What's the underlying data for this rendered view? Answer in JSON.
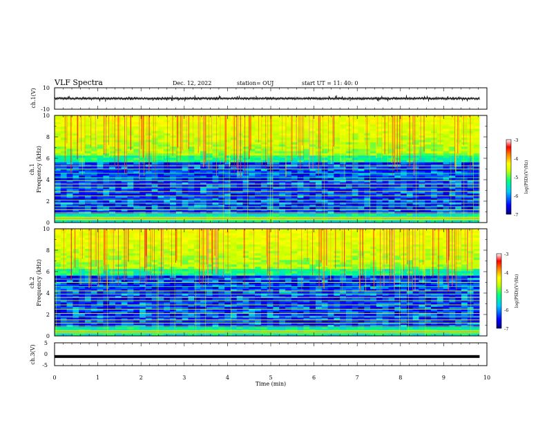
{
  "header": {
    "title": "VLF Spectra",
    "date": "Dec. 12, 2022",
    "station": "station= OUJ",
    "start": "start  UT  =   11: 40: 0"
  },
  "colors": {
    "colormap": [
      "#000080",
      "#0000ff",
      "#00c8ff",
      "#00ff80",
      "#c8ff00",
      "#ffff00",
      "#ff8000",
      "#ff0000",
      "#ff8080",
      "#ffffff"
    ],
    "waveform": "#000000",
    "frame": "#000000"
  },
  "chart_data": [
    {
      "type": "line",
      "name": "ch1-waveform",
      "ylabel": "ch.1(V)",
      "ylim": [
        -10,
        10
      ],
      "yticks": [
        "10",
        "-10"
      ],
      "xlim": [
        0,
        10
      ],
      "mean_value": 0,
      "envelope_halfwidth": 1.0
    },
    {
      "type": "heatmap",
      "name": "ch1-spectrogram",
      "ylabel_channel": "ch.1",
      "ylabel": "Frequency  (kHz)",
      "ylim": [
        0,
        10
      ],
      "yticks": [
        "0",
        "2",
        "4",
        "6",
        "8",
        "10"
      ],
      "xlim": [
        0,
        9.83
      ],
      "colorbar": {
        "label": "log(PSD)(V²/Hz)",
        "range": [
          -7,
          -3
        ],
        "ticks": [
          "-3",
          "-4",
          "-5",
          "-6",
          "-7"
        ]
      }
    },
    {
      "type": "heatmap",
      "name": "ch2-spectrogram",
      "ylabel_channel": "ch.2",
      "ylabel": "Frequency  (kHz)",
      "ylim": [
        0,
        10
      ],
      "yticks": [
        "0",
        "2",
        "4",
        "6",
        "8",
        "10"
      ],
      "xlim": [
        0,
        9.83
      ],
      "colorbar": {
        "label": "log(PSD)(V²/Hz)",
        "range": [
          -7,
          -3
        ],
        "ticks": [
          "-3",
          "-4",
          "-5",
          "-6",
          "-7"
        ]
      }
    },
    {
      "type": "line",
      "name": "ch3-waveform",
      "ylabel": "ch.3(V)",
      "ylim": [
        -5,
        5
      ],
      "yticks": [
        "5",
        "0",
        "-5"
      ],
      "xlim": [
        0,
        10
      ],
      "mean_value": -1.0,
      "envelope_halfwidth": 0.2
    }
  ],
  "xaxis": {
    "label": "Time  (min)",
    "range": [
      0,
      10
    ],
    "ticks": [
      "0",
      "1",
      "2",
      "3",
      "4",
      "5",
      "6",
      "7",
      "8",
      "9",
      "10"
    ]
  }
}
